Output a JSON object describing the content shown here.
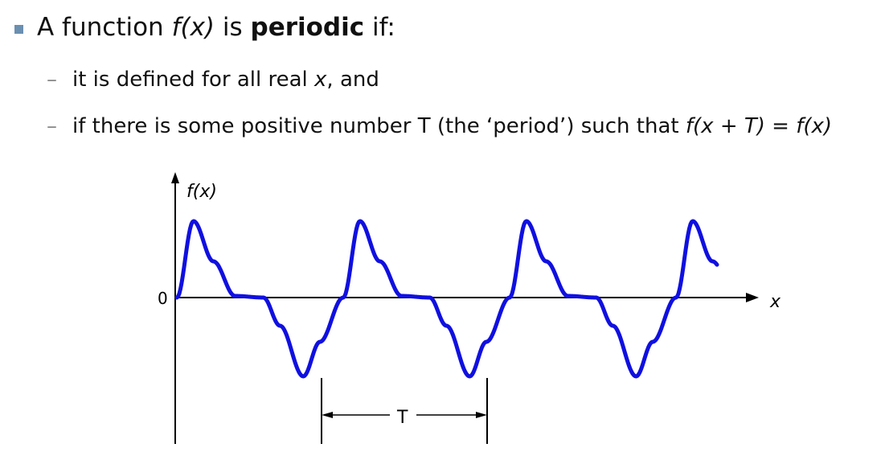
{
  "bullet": {
    "intro": "A function ",
    "fx": "f(x)",
    "is": " is ",
    "term": "periodic",
    "if": " if:"
  },
  "sub1": {
    "dash": "–",
    "text": "it is defined for all real ",
    "var": "x",
    "tail": ", and"
  },
  "sub2": {
    "dash": "–",
    "text": "if there is some positive number T (the ‘period’) such that ",
    "lhs": "f(x + T)",
    "eq": " = ",
    "rhs": "f(x)"
  },
  "figure": {
    "y_axis_label": "f(x)",
    "x_axis_label": "x",
    "origin_label": "0",
    "period_label": "T",
    "curve_color": "#1010e0"
  }
}
